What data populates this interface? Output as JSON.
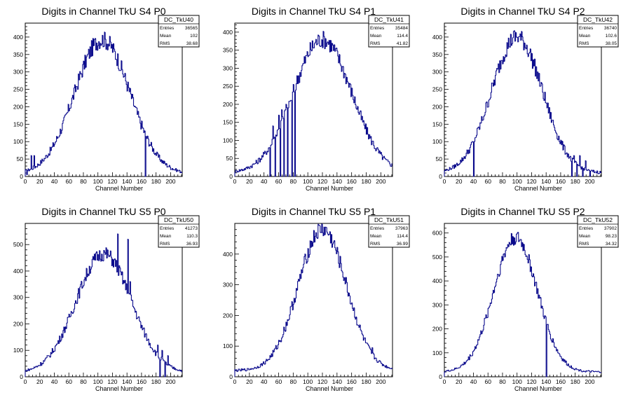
{
  "chart_data": [
    {
      "type": "bar",
      "title": "Digits in Channel TkU S4 P0",
      "xlabel": "Channel Number",
      "ylabel": "",
      "xlim": [
        0,
        216
      ],
      "ylim": [
        0,
        440
      ],
      "xticks": [
        0,
        20,
        40,
        60,
        80,
        100,
        120,
        140,
        160,
        180,
        200
      ],
      "yticks": [
        0,
        50,
        100,
        150,
        200,
        250,
        300,
        350,
        400
      ],
      "stats": {
        "name": "DC_TkU40",
        "rows": [
          {
            "label": "Entries",
            "value": "36565"
          },
          {
            "label": "Mean",
            "value": "102"
          },
          {
            "label": "RMS",
            "value": "38.68"
          }
        ]
      },
      "profile": {
        "mean": 106,
        "sigma": 38,
        "peak": 385,
        "base": 8
      },
      "spikes": [
        [
          2,
          5
        ],
        [
          8,
          60
        ],
        [
          10,
          20
        ],
        [
          12,
          60
        ],
        [
          165,
          0
        ]
      ],
      "values": []
    },
    {
      "type": "bar",
      "title": "Digits in Channel TkU S4 P1",
      "xlabel": "Channel Number",
      "ylabel": "",
      "xlim": [
        0,
        216
      ],
      "ylim": [
        0,
        425
      ],
      "xticks": [
        0,
        20,
        40,
        60,
        80,
        100,
        120,
        140,
        160,
        180,
        200
      ],
      "yticks": [
        0,
        50,
        100,
        150,
        200,
        250,
        300,
        350,
        400
      ],
      "stats": {
        "name": "DC_TkU41",
        "rows": [
          {
            "label": "Entries",
            "value": "35484"
          },
          {
            "label": "Mean",
            "value": "114.4"
          },
          {
            "label": "RMS",
            "value": "41.82"
          }
        ]
      },
      "profile": {
        "mean": 120,
        "sigma": 40,
        "peak": 370,
        "base": 10
      },
      "spikes": [
        [
          48,
          0
        ],
        [
          52,
          140
        ],
        [
          55,
          0
        ],
        [
          60,
          170
        ],
        [
          62,
          0
        ],
        [
          64,
          185
        ],
        [
          67,
          0
        ],
        [
          70,
          200
        ],
        [
          72,
          0
        ],
        [
          76,
          210
        ],
        [
          78,
          0
        ],
        [
          82,
          0
        ]
      ],
      "values": []
    },
    {
      "type": "bar",
      "title": "Digits in Channel TkU S4 P2",
      "xlabel": "Channel Number",
      "ylabel": "",
      "xlim": [
        0,
        216
      ],
      "ylim": [
        0,
        440
      ],
      "xticks": [
        0,
        20,
        40,
        60,
        80,
        100,
        120,
        140,
        160,
        180,
        200
      ],
      "yticks": [
        0,
        50,
        100,
        150,
        200,
        250,
        300,
        350,
        400
      ],
      "stats": {
        "name": "DC_TkU42",
        "rows": [
          {
            "label": "Entries",
            "value": "36740"
          },
          {
            "label": "Mean",
            "value": "102.6"
          },
          {
            "label": "RMS",
            "value": "38.05"
          }
        ]
      },
      "profile": {
        "mean": 100,
        "sigma": 35,
        "peak": 390,
        "base": 10
      },
      "spikes": [
        [
          40,
          0
        ],
        [
          175,
          0
        ],
        [
          178,
          60
        ],
        [
          182,
          0
        ],
        [
          186,
          60
        ],
        [
          190,
          0
        ],
        [
          194,
          45
        ],
        [
          200,
          0
        ]
      ],
      "values": []
    },
    {
      "type": "bar",
      "title": "Digits in Channel TkU S5 P0",
      "xlabel": "Channel Number",
      "ylabel": "",
      "xlim": [
        0,
        216
      ],
      "ylim": [
        0,
        580
      ],
      "xticks": [
        0,
        20,
        40,
        60,
        80,
        100,
        120,
        140,
        160,
        180,
        200
      ],
      "yticks": [
        0,
        100,
        200,
        300,
        400,
        500
      ],
      "stats": {
        "name": "DC_TkU50",
        "rows": [
          {
            "label": "Entries",
            "value": "41273"
          },
          {
            "label": "Mean",
            "value": "110.3"
          },
          {
            "label": "RMS",
            "value": "36.93"
          }
        ]
      },
      "profile": {
        "mean": 108,
        "sigma": 38,
        "peak": 450,
        "base": 15
      },
      "spikes": [
        [
          127,
          540
        ],
        [
          141,
          520
        ],
        [
          144,
          360
        ],
        [
          182,
          120
        ],
        [
          185,
          0
        ],
        [
          188,
          100
        ],
        [
          192,
          0
        ],
        [
          196,
          80
        ]
      ],
      "values": []
    },
    {
      "type": "bar",
      "title": "Digits in Channel TkU S5 P1",
      "xlabel": "Channel Number",
      "ylabel": "",
      "xlim": [
        0,
        216
      ],
      "ylim": [
        0,
        500
      ],
      "xticks": [
        0,
        20,
        40,
        60,
        80,
        100,
        120,
        140,
        160,
        180,
        200
      ],
      "yticks": [
        0,
        100,
        200,
        300,
        400
      ],
      "stats": {
        "name": "DC_TkU51",
        "rows": [
          {
            "label": "Entries",
            "value": "37963"
          },
          {
            "label": "Mean",
            "value": "114.4"
          },
          {
            "label": "RMS",
            "value": "36.99"
          }
        ]
      },
      "profile": {
        "mean": 120,
        "sigma": 33,
        "peak": 460,
        "base": 20
      },
      "spikes": [
        [
          188,
          95
        ]
      ],
      "values": []
    },
    {
      "type": "bar",
      "title": "Digits in Channel TkU S5 P2",
      "xlabel": "Channel Number",
      "ylabel": "",
      "xlim": [
        0,
        216
      ],
      "ylim": [
        0,
        640
      ],
      "xticks": [
        0,
        20,
        40,
        60,
        80,
        100,
        120,
        140,
        160,
        180,
        200
      ],
      "yticks": [
        0,
        100,
        200,
        300,
        400,
        500,
        600
      ],
      "stats": {
        "name": "DC_TkU52",
        "rows": [
          {
            "label": "Entries",
            "value": "37902"
          },
          {
            "label": "Mean",
            "value": "98.23"
          },
          {
            "label": "RMS",
            "value": "34.32"
          }
        ]
      },
      "profile": {
        "mean": 98,
        "sigma": 30,
        "peak": 560,
        "base": 20
      },
      "spikes": [
        [
          140,
          0
        ]
      ],
      "values": []
    }
  ]
}
